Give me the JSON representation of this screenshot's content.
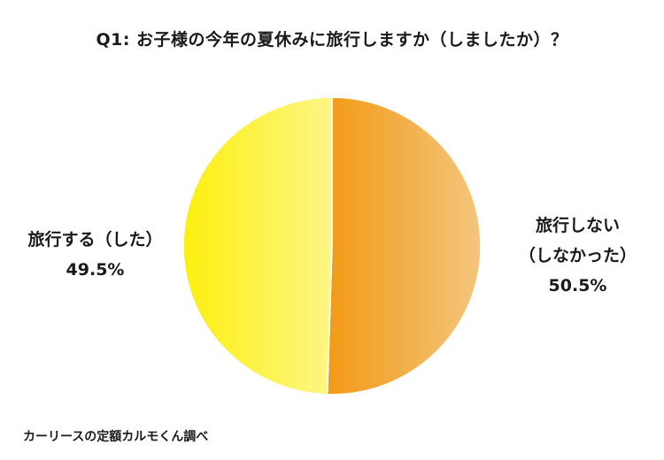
{
  "chart_data": {
    "type": "pie",
    "title": "Q1: お子様の今年の夏休みに旅行しますか（しましたか）？",
    "slices": [
      {
        "label_lines": [
          "旅行しない",
          "（しなかった）"
        ],
        "value": 50.5,
        "value_label": "50.5%",
        "color_start": "#f29a16",
        "color_end": "#f3c67e"
      },
      {
        "label_lines": [
          "旅行する（した）"
        ],
        "value": 49.5,
        "value_label": "49.5%",
        "color_start": "#fdef0e",
        "color_end": "#fdf687"
      }
    ],
    "start_angle": "12 o'clock",
    "direction": "clockwise"
  },
  "source_text": "カーリースの定額カルモくん調べ"
}
